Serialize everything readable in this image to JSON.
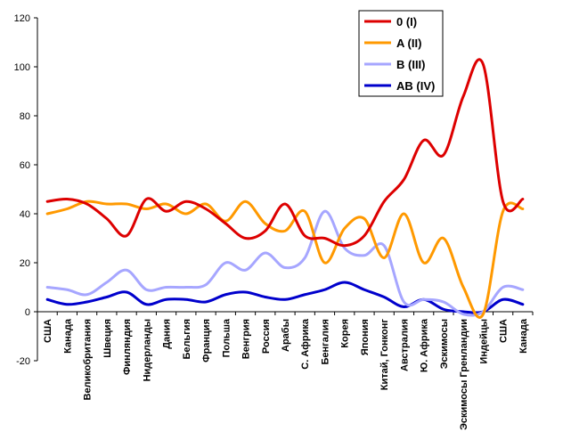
{
  "chart_data": {
    "type": "line",
    "title": "",
    "xlabel": "",
    "ylabel": "",
    "ylim": [
      -20,
      120
    ],
    "yticks": [
      -20,
      0,
      20,
      40,
      60,
      80,
      100,
      120
    ],
    "grid": false,
    "legend_position": "top-right",
    "categories": [
      "США",
      "Канада",
      "Великобритания",
      "Швеция",
      "Финляндия",
      "Нидерланды",
      "Дания",
      "Бельгия",
      "Франция",
      "Польша",
      "Венгрия",
      "Россия",
      "Арабы",
      "С. Африка",
      "Бенгалия",
      "Корея",
      "Япония",
      "Китай, Гонконг",
      "Австралия",
      "Ю. Африка",
      "Эскимосы",
      "Эскимосы Гренландии",
      "Индейцы",
      "США",
      "Канада"
    ],
    "series": [
      {
        "name": "0 (I)",
        "color": "#dd0000",
        "values": [
          45,
          46,
          44,
          38,
          31,
          46,
          41,
          45,
          42,
          36,
          30,
          33,
          44,
          31,
          30,
          27,
          31,
          45,
          54,
          70,
          64,
          88,
          101,
          45,
          46
        ]
      },
      {
        "name": "A (II)",
        "color": "#ff9900",
        "values": [
          40,
          42,
          45,
          44,
          44,
          42,
          44,
          40,
          44,
          37,
          45,
          36,
          33,
          41,
          20,
          34,
          38,
          22,
          40,
          20,
          30,
          10,
          -1,
          41,
          42
        ]
      },
      {
        "name": "B (III)",
        "color": "#a6a6ff",
        "values": [
          10,
          9,
          7,
          12,
          17,
          9,
          10,
          10,
          11,
          20,
          17,
          24,
          18,
          22,
          41,
          26,
          23,
          27,
          4,
          5,
          4,
          -1,
          0,
          10,
          9
        ]
      },
      {
        "name": "AB (IV)",
        "color": "#0000cc",
        "values": [
          5,
          3,
          4,
          6,
          8,
          3,
          5,
          5,
          4,
          7,
          8,
          6,
          5,
          7,
          9,
          12,
          9,
          6,
          2,
          5,
          1,
          0,
          0,
          5,
          3
        ]
      }
    ]
  }
}
